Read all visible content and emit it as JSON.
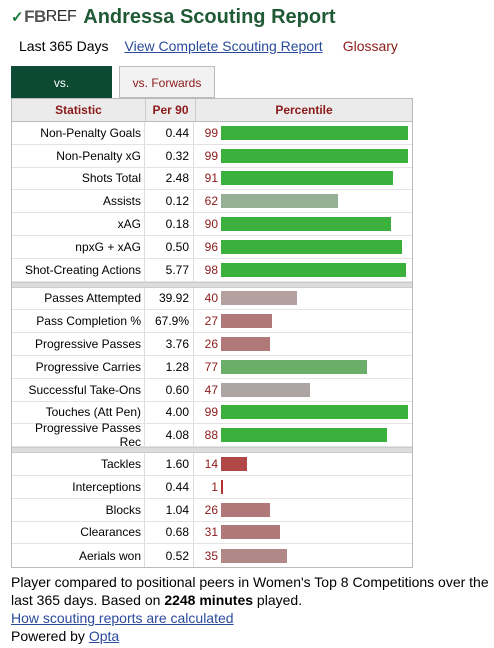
{
  "header": {
    "logo_check": "✓",
    "logo_fb": "FB",
    "logo_ref": "REF",
    "title": "Andressa Scouting Report"
  },
  "subnav": {
    "period": "Last 365 Days",
    "complete_link": "View Complete Scouting Report",
    "glossary": "Glossary"
  },
  "tabs": {
    "active": "vs. Midfielders",
    "inactive": "vs. Forwards"
  },
  "table": {
    "headers": [
      "Statistic",
      "Per 90",
      "Percentile"
    ],
    "groups": [
      [
        {
          "stat": "Non-Penalty Goals",
          "per90": "0.44",
          "pct": 99,
          "color": "#3cb03c"
        },
        {
          "stat": "Non-Penalty xG",
          "per90": "0.32",
          "pct": 99,
          "color": "#3cb03c"
        },
        {
          "stat": "Shots Total",
          "per90": "2.48",
          "pct": 91,
          "color": "#3cb03c"
        },
        {
          "stat": "Assists",
          "per90": "0.12",
          "pct": 62,
          "color": "#96b096"
        },
        {
          "stat": "xAG",
          "per90": "0.18",
          "pct": 90,
          "color": "#3cb03c"
        },
        {
          "stat": "npxG + xAG",
          "per90": "0.50",
          "pct": 96,
          "color": "#3cb03c"
        },
        {
          "stat": "Shot-Creating Actions",
          "per90": "5.77",
          "pct": 98,
          "color": "#3cb03c"
        }
      ],
      [
        {
          "stat": "Passes Attempted",
          "per90": "39.92",
          "pct": 40,
          "color": "#b5a0a0"
        },
        {
          "stat": "Pass Completion %",
          "per90": "67.9%",
          "pct": 27,
          "color": "#b07878"
        },
        {
          "stat": "Progressive Passes",
          "per90": "3.76",
          "pct": 26,
          "color": "#b07878"
        },
        {
          "stat": "Progressive Carries",
          "per90": "1.28",
          "pct": 77,
          "color": "#6aae6a"
        },
        {
          "stat": "Successful Take-Ons",
          "per90": "0.60",
          "pct": 47,
          "color": "#ada4a4"
        },
        {
          "stat": "Touches (Att Pen)",
          "per90": "4.00",
          "pct": 99,
          "color": "#3cb03c"
        },
        {
          "stat": "Progressive Passes Rec",
          "per90": "4.08",
          "pct": 88,
          "color": "#3cb03c"
        }
      ],
      [
        {
          "stat": "Tackles",
          "per90": "1.60",
          "pct": 14,
          "color": "#b04848"
        },
        {
          "stat": "Interceptions",
          "per90": "0.44",
          "pct": 1,
          "color": "#b03030"
        },
        {
          "stat": "Blocks",
          "per90": "1.04",
          "pct": 26,
          "color": "#b07878"
        },
        {
          "stat": "Clearances",
          "per90": "0.68",
          "pct": 31,
          "color": "#b07878"
        },
        {
          "stat": "Aerials won",
          "per90": "0.52",
          "pct": 35,
          "color": "#b08888"
        }
      ]
    ]
  },
  "footer": {
    "line1_pre": "Player compared to positional peers in Women's Top 8 Competitions over the last 365 days. Based on ",
    "minutes": "2248 minutes",
    "line1_post": " played.",
    "how_link": "How scouting reports are calculated",
    "powered_pre": "Powered by ",
    "powered_link": "Opta"
  }
}
